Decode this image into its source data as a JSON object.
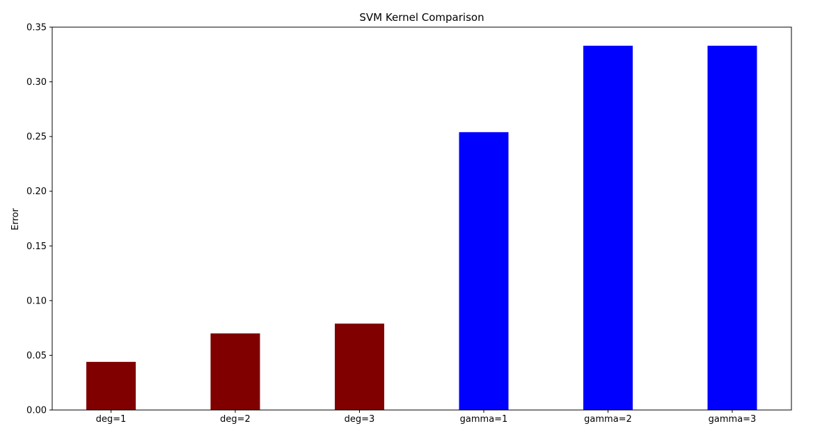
{
  "chart_data": {
    "type": "bar",
    "title": "SVM Kernel Comparison",
    "xlabel": "",
    "ylabel": "Error",
    "categories": [
      "deg=1",
      "deg=2",
      "deg=3",
      "gamma=1",
      "gamma=2",
      "gamma=3"
    ],
    "values": [
      0.044,
      0.07,
      0.079,
      0.254,
      0.333,
      0.333
    ],
    "bar_colors": [
      "#800000",
      "#800000",
      "#800000",
      "#0000ff",
      "#0000ff",
      "#0000ff"
    ],
    "ylim": [
      0,
      0.35
    ],
    "yticks": [
      0.0,
      0.05,
      0.1,
      0.15,
      0.2,
      0.25,
      0.3,
      0.35
    ],
    "ytick_labels": [
      "0.00",
      "0.05",
      "0.10",
      "0.15",
      "0.20",
      "0.25",
      "0.30",
      "0.35"
    ],
    "grid": false,
    "legend": "none"
  }
}
